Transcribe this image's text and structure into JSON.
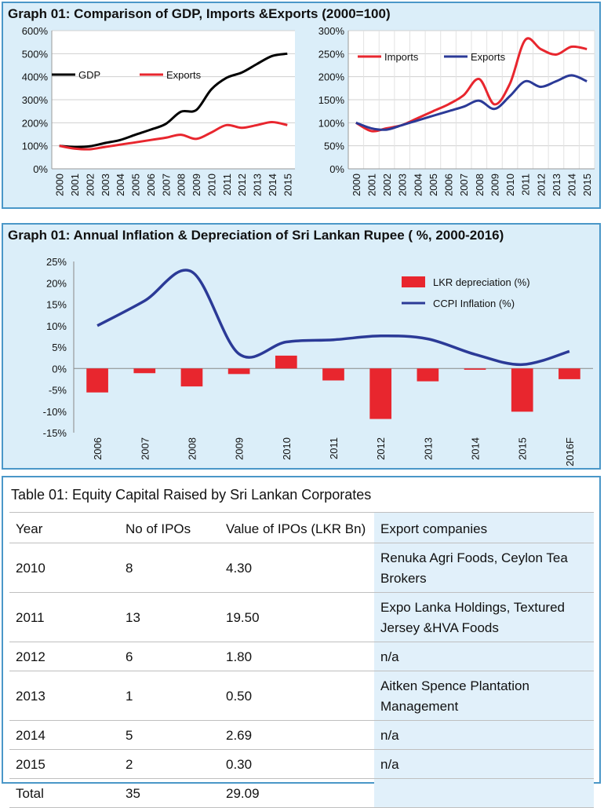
{
  "graph1": {
    "title": "Graph 01:  Comparison of GDP, Imports &Exports  (2000=100)"
  },
  "graph2": {
    "title": "Graph 01:  Annual Inflation &  Depreciation of Sri Lankan Rupee ( %, 2000-2016)"
  },
  "chart_data": [
    {
      "type": "line",
      "x": [
        "2000",
        "2001",
        "2002",
        "2003",
        "2004",
        "2005",
        "2006",
        "2007",
        "2008",
        "2009",
        "2010",
        "2011",
        "2012",
        "2013",
        "2014",
        "2015"
      ],
      "series": [
        {
          "name": "GDP",
          "color": "#000000",
          "values": [
            100,
            95,
            98,
            112,
            125,
            148,
            170,
            195,
            248,
            255,
            345,
            395,
            418,
            455,
            490,
            500
          ]
        },
        {
          "name": "Exports",
          "color": "#e8262e",
          "values": [
            100,
            88,
            85,
            95,
            105,
            115,
            125,
            135,
            148,
            130,
            158,
            190,
            178,
            190,
            203,
            190
          ]
        }
      ],
      "ylim": [
        0,
        600
      ],
      "yticks": [
        "0%",
        "100%",
        "200%",
        "300%",
        "400%",
        "500%",
        "600%"
      ],
      "legend": "top-left"
    },
    {
      "type": "line",
      "x": [
        "2000",
        "2001",
        "2002",
        "2003",
        "2004",
        "2005",
        "2006",
        "2007",
        "2008",
        "2009",
        "2010",
        "2011",
        "2012",
        "2013",
        "2014",
        "2015"
      ],
      "series": [
        {
          "name": "Imports",
          "color": "#e8262e",
          "values": [
            100,
            82,
            88,
            95,
            110,
            125,
            140,
            160,
            195,
            140,
            185,
            280,
            260,
            248,
            265,
            260
          ]
        },
        {
          "name": "Exports",
          "color": "#2b3a97",
          "values": [
            100,
            88,
            85,
            95,
            105,
            115,
            125,
            135,
            148,
            130,
            158,
            190,
            178,
            190,
            203,
            190
          ]
        }
      ],
      "ylim": [
        0,
        300
      ],
      "yticks": [
        "0%",
        "50%",
        "100%",
        "150%",
        "200%",
        "250%",
        "300%"
      ],
      "legend": "top-left"
    },
    {
      "type": "bar+line",
      "categories": [
        "2006",
        "2007",
        "2008",
        "2009",
        "2010",
        "2011",
        "2012",
        "2013",
        "2014",
        "2015",
        "2016F"
      ],
      "series": [
        {
          "name": "LKR depreciation (%)",
          "type": "bar",
          "color": "#e8262e",
          "values": [
            -5.6,
            -1.1,
            -4.2,
            -1.3,
            3.0,
            -2.8,
            -11.8,
            -3.0,
            -0.3,
            -10.1,
            -2.5
          ]
        },
        {
          "name": "CCPI Inflation (%)",
          "type": "line",
          "color": "#2b3a97",
          "values": [
            10.0,
            15.8,
            22.6,
            3.4,
            6.2,
            6.7,
            7.6,
            6.9,
            3.3,
            0.9,
            4.0
          ]
        }
      ],
      "ylim": [
        -15,
        25
      ],
      "yticks": [
        "-15%",
        "-10%",
        "-5%",
        "0%",
        "5%",
        "10%",
        "15%",
        "20%",
        "25%"
      ],
      "legend": "right"
    }
  ],
  "table": {
    "title": "Table 01: Equity Capital Raised by Sri Lankan Corporates",
    "headers": [
      "Year",
      "No of IPOs",
      "Value of IPOs (LKR Bn)",
      "Export companies"
    ],
    "rows": [
      [
        "2010",
        "8",
        "4.30",
        "Renuka Agri   Foods, Ceylon Tea Brokers"
      ],
      [
        "2011",
        "13",
        "19.50",
        "Expo Lanka Holdings,  Textured Jersey &HVA Foods"
      ],
      [
        "2012",
        "6",
        "1.80",
        "n/a"
      ],
      [
        "2013",
        "1",
        "0.50",
        "Aitken Spence Plantation Management"
      ],
      [
        "2014",
        "5",
        "2.69",
        "n/a"
      ],
      [
        "2015",
        "2",
        "0.30",
        "n/a"
      ],
      [
        "Total",
        "35",
        "29.09",
        ""
      ]
    ]
  }
}
